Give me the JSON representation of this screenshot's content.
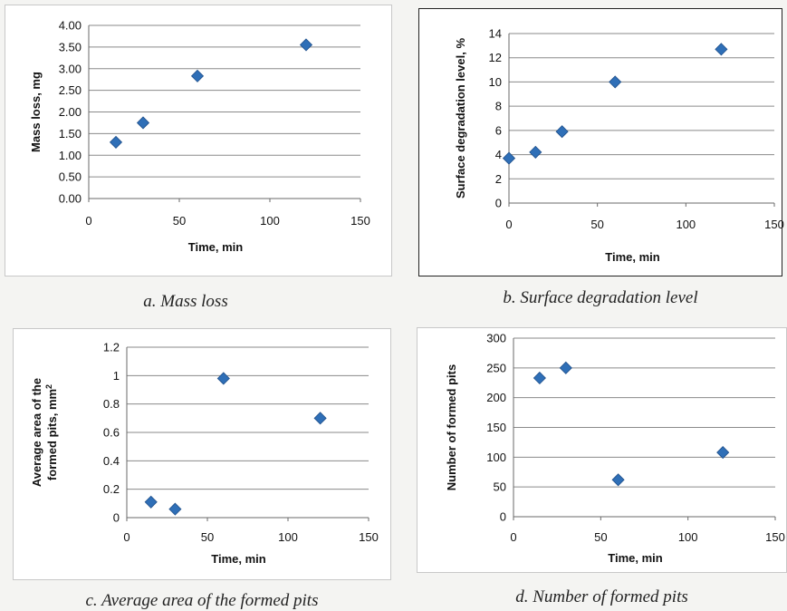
{
  "charts": [
    {
      "type": "scatter",
      "caption": "a. Mass loss",
      "xlabel": "Time, min",
      "ylabel": "Mass loss, mg",
      "xlim": [
        0,
        150
      ],
      "xticks": [
        "0",
        "50",
        "100",
        "150"
      ],
      "ylim": [
        0,
        4
      ],
      "yticks": [
        "0.00",
        "0.50",
        "1.00",
        "1.50",
        "2.00",
        "2.50",
        "3.00",
        "3.50",
        "4.00"
      ],
      "grid": true,
      "x": [
        15,
        30,
        60,
        120
      ],
      "y": [
        1.3,
        1.75,
        2.83,
        3.55
      ],
      "marker_color": "#2f6fb7"
    },
    {
      "type": "scatter",
      "caption": "b. Surface degradation level",
      "xlabel": "Time, min",
      "ylabel": "Surface degradation level, %",
      "xlim": [
        0,
        150
      ],
      "xticks": [
        "0",
        "50",
        "100",
        "150"
      ],
      "ylim": [
        0,
        14
      ],
      "yticks": [
        "0",
        "2",
        "4",
        "6",
        "8",
        "10",
        "12",
        "14"
      ],
      "grid": true,
      "x": [
        0,
        15,
        30,
        60,
        120
      ],
      "y": [
        3.7,
        4.2,
        5.9,
        10.0,
        12.7
      ],
      "marker_color": "#2f6fb7"
    },
    {
      "type": "scatter",
      "caption": "c. Average area of the formed pits",
      "xlabel": "Time, min",
      "ylabel_line1": "Average area of the",
      "ylabel_line2": "formed pits, mm",
      "ylabel_sup": "2",
      "xlim": [
        0,
        150
      ],
      "xticks": [
        "0",
        "50",
        "100",
        "150"
      ],
      "ylim": [
        0,
        1.2
      ],
      "yticks": [
        "0",
        "0.2",
        "0.4",
        "0.6",
        "0.8",
        "1",
        "1.2"
      ],
      "grid": true,
      "x": [
        15,
        30,
        60,
        120
      ],
      "y": [
        0.11,
        0.06,
        0.98,
        0.7
      ],
      "marker_color": "#2f6fb7"
    },
    {
      "type": "scatter",
      "caption": "d. Number of formed pits",
      "xlabel": "Time, min",
      "ylabel": "Number of formed pits",
      "xlim": [
        0,
        150
      ],
      "xticks": [
        "0",
        "50",
        "100",
        "150"
      ],
      "ylim": [
        0,
        300
      ],
      "yticks": [
        "0",
        "50",
        "100",
        "150",
        "200",
        "250",
        "300"
      ],
      "grid": true,
      "x": [
        15,
        30,
        60,
        120
      ],
      "y": [
        233,
        250,
        62,
        108
      ],
      "marker_color": "#2f6fb7"
    }
  ]
}
